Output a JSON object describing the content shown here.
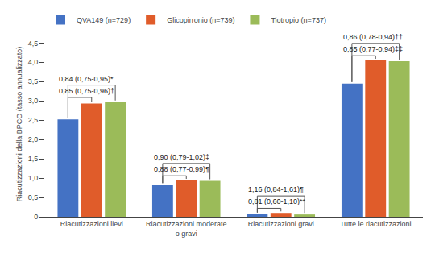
{
  "chart_data": {
    "type": "bar",
    "categories": [
      "Riacutizzazioni lievi",
      "Riacutizzazioni moderate\no gravi",
      "Riacutizzazioni gravi",
      "Tutte le riacutizzazioni"
    ],
    "series": [
      {
        "name": "QVA149 (n=729)",
        "color": "#4472C4",
        "values": [
          2.52,
          0.83,
          0.07,
          3.45
        ]
      },
      {
        "name": "Glicopirronio (n=739)",
        "color": "#E05C2A",
        "values": [
          2.93,
          0.94,
          0.1,
          4.05
        ]
      },
      {
        "name": "Tiotropio (n=737)",
        "color": "#9BBB59",
        "values": [
          2.97,
          0.93,
          0.06,
          4.03
        ]
      }
    ],
    "ylabel": "Riacutizzazioni della BPCO (tasso annualizzato)",
    "ylim": [
      0,
      4.8
    ],
    "yticks": [
      0,
      {
        "value": 0.5,
        "label": "0,5"
      },
      {
        "value": 1.0,
        "label": "1,0"
      },
      {
        "value": 1.5,
        "label": "1,5"
      },
      {
        "value": 2.0,
        "label": "2,0"
      },
      {
        "value": 2.5,
        "label": "2,5"
      },
      {
        "value": 3.0,
        "label": "3,0"
      },
      {
        "value": 3.5,
        "label": "3,5"
      },
      {
        "value": 4.0,
        "label": "4,0"
      },
      {
        "value": 4.5,
        "label": "4,5"
      }
    ],
    "grid": false,
    "legend": "top",
    "annotations": [
      {
        "text": "0,84 (0,75-0,95)*",
        "category": "Riacutizzazioni lievi",
        "series": [
          "QVA149 (n=729)",
          "Tiotropio (n=737)"
        ]
      },
      {
        "text": "0,85 (0,75-0,96)†",
        "category": "Riacutizzazioni lievi",
        "series": [
          "QVA149 (n=729)",
          "Glicopirronio (n=739)"
        ]
      },
      {
        "text": "0,90 (0,79-1,02)‡",
        "category": "Riacutizzazioni moderate\no gravi",
        "series": [
          "QVA149 (n=729)",
          "Tiotropio (n=737)"
        ]
      },
      {
        "text": "0,88 (0,77-0,99)¶",
        "category": "Riacutizzazioni moderate\no gravi",
        "series": [
          "QVA149 (n=729)",
          "Glicopirronio (n=739)"
        ]
      },
      {
        "text": "1,16 (0,84-1,61)¶",
        "category": "Riacutizzazioni gravi",
        "series": [
          "QVA149 (n=729)",
          "Tiotropio (n=737)"
        ]
      },
      {
        "text": "0,81 (0,60-1,10)**",
        "category": "Riacutizzazioni gravi",
        "series": [
          "QVA149 (n=729)",
          "Glicopirronio (n=739)"
        ]
      },
      {
        "text": "0,86 (0,78-0,94)††",
        "category": "Tutte le riacutizzazioni",
        "series": [
          "QVA149 (n=729)",
          "Tiotropio (n=737)"
        ]
      },
      {
        "text": "0,85 (0,77-0,94)‡‡",
        "category": "Tutte le riacutizzazioni",
        "series": [
          "QVA149 (n=729)",
          "Glicopirronio (n=739)"
        ]
      }
    ]
  }
}
